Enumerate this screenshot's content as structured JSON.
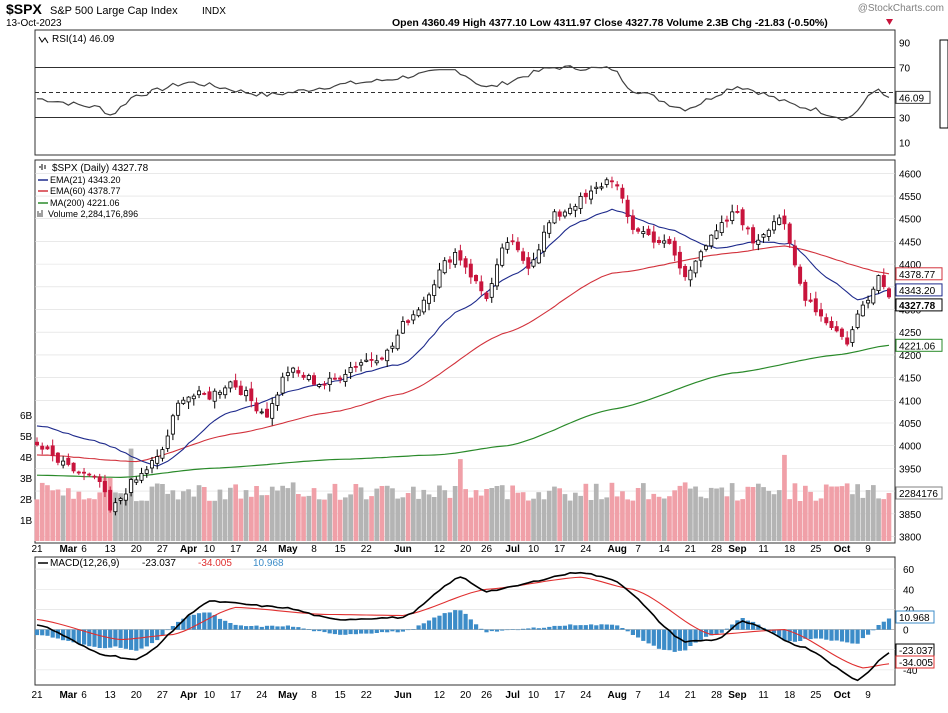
{
  "header": {
    "symbol": "$SPX",
    "name": "S&P 500 Large Cap Index",
    "exchange": "INDX",
    "date": "13-Oct-2023",
    "stats_line": "Open 4360.49  High 4377.10  Low 4311.97  Close 4327.78  Volume 2.3B  Chg -21.83 (-0.50%)",
    "watermark": "@StockCharts.com"
  },
  "colors": {
    "up_candle": "#000000",
    "down_candle": "#c8143c",
    "ema21": "#1e2a8c",
    "ema60": "#d2323c",
    "ma200": "#2a8a2a",
    "volume_up": "#b4b4b4",
    "volume_down": "#f0a0a8",
    "macd_line": "#000000",
    "signal_line": "#e03030",
    "histogram": "#3c8cc8",
    "rsi_line": "#404040",
    "panel_border": "#303030",
    "grid": "#dcdcdc"
  },
  "rsi_panel": {
    "legend": "RSI(14) 46.09",
    "current_label": "46.09",
    "levels": [
      90,
      70,
      50,
      30,
      10
    ],
    "ylim": [
      0,
      100
    ]
  },
  "price_panel": {
    "legend": [
      "$SPX (Daily) 4327.78",
      "EMA(21) 4343.20",
      "EMA(60) 4378.77",
      "MA(200) 4221.06",
      "Volume 2,284,176,896"
    ],
    "right_labels": [
      "4378.77",
      "4343.20",
      "4327.78",
      "4221.06",
      "2284176"
    ],
    "y_ticks": [
      4600,
      4550,
      4500,
      4450,
      4400,
      4350,
      4300,
      4250,
      4200,
      4150,
      4100,
      4050,
      4000,
      3950,
      3900,
      3850,
      3800
    ],
    "volume_ticks": [
      "6B",
      "5B",
      "4B",
      "3B",
      "2B",
      "1B"
    ],
    "ylim": [
      3790,
      4625
    ]
  },
  "macd_panel": {
    "legend": "MACD(12,26,9)",
    "macd_value": "-23.037",
    "signal_value": "-34.005",
    "hist_value": "10.968",
    "y_ticks": [
      "60",
      "40",
      "20",
      "0",
      "-20",
      "-40"
    ],
    "ylim": [
      -55,
      72
    ]
  },
  "x_axis": {
    "labels": [
      "21",
      "Mar",
      "6",
      "13",
      "20",
      "27",
      "Apr",
      "10",
      "17",
      "24",
      "May",
      "8",
      "15",
      "22",
      "Jun",
      "12",
      "20",
      "26",
      "Jul",
      "10",
      "17",
      "24",
      "Aug",
      "7",
      "14",
      "21",
      "28",
      "Sep",
      "11",
      "18",
      "25",
      "Oct",
      "9"
    ]
  },
  "chart_data": {
    "type": "candlestick",
    "date_range": [
      "2023-02-21",
      "2023-10-13"
    ],
    "series": [
      {
        "name": "$SPX (Daily)",
        "last": 4327.78
      },
      {
        "name": "EMA(21)",
        "last": 4343.2
      },
      {
        "name": "EMA(60)",
        "last": 4378.77
      },
      {
        "name": "MA(200)",
        "last": 4221.06
      },
      {
        "name": "Volume",
        "last": 2284176896
      }
    ],
    "close_anchors": [
      [
        "2023-02-21",
        3998
      ],
      [
        "2023-03-01",
        3950
      ],
      [
        "2023-03-09",
        3920
      ],
      [
        "2023-03-13",
        3855
      ],
      [
        "2023-03-17",
        3915
      ],
      [
        "2023-03-24",
        3970
      ],
      [
        "2023-03-31",
        4110
      ],
      [
        "2023-04-10",
        4110
      ],
      [
        "2023-04-14",
        4140
      ],
      [
        "2023-04-25",
        4070
      ],
      [
        "2023-05-01",
        4165
      ],
      [
        "2023-05-10",
        4135
      ],
      [
        "2023-05-19",
        4185
      ],
      [
        "2023-05-26",
        4205
      ],
      [
        "2023-06-02",
        4280
      ],
      [
        "2023-06-15",
        4425
      ],
      [
        "2023-06-26",
        4330
      ],
      [
        "2023-06-30",
        4450
      ],
      [
        "2023-07-07",
        4400
      ],
      [
        "2023-07-14",
        4505
      ],
      [
        "2023-07-21",
        4540
      ],
      [
        "2023-07-31",
        4590
      ],
      [
        "2023-08-04",
        4480
      ],
      [
        "2023-08-15",
        4440
      ],
      [
        "2023-08-18",
        4370
      ],
      [
        "2023-08-23",
        4435
      ],
      [
        "2023-09-01",
        4515
      ],
      [
        "2023-09-07",
        4450
      ],
      [
        "2023-09-14",
        4505
      ],
      [
        "2023-09-21",
        4330
      ],
      [
        "2023-09-27",
        4275
      ],
      [
        "2023-10-03",
        4230
      ],
      [
        "2023-10-06",
        4310
      ],
      [
        "2023-10-11",
        4375
      ],
      [
        "2023-10-13",
        4327.78
      ]
    ],
    "ema21_anchors": [
      [
        "2023-02-21",
        4045
      ],
      [
        "2023-03-08",
        4010
      ],
      [
        "2023-03-24",
        3955
      ],
      [
        "2023-04-14",
        4075
      ],
      [
        "2023-05-05",
        4130
      ],
      [
        "2023-06-01",
        4180
      ],
      [
        "2023-06-16",
        4300
      ],
      [
        "2023-07-03",
        4375
      ],
      [
        "2023-07-21",
        4495
      ],
      [
        "2023-07-31",
        4520
      ],
      [
        "2023-08-14",
        4480
      ],
      [
        "2023-08-28",
        4435
      ],
      [
        "2023-09-08",
        4450
      ],
      [
        "2023-09-18",
        4445
      ],
      [
        "2023-09-28",
        4365
      ],
      [
        "2023-10-05",
        4320
      ],
      [
        "2023-10-13",
        4343.2
      ]
    ],
    "ema60_anchors": [
      [
        "2023-02-21",
        3980
      ],
      [
        "2023-03-20",
        3965
      ],
      [
        "2023-04-14",
        4025
      ],
      [
        "2023-05-12",
        4075
      ],
      [
        "2023-06-01",
        4115
      ],
      [
        "2023-06-30",
        4250
      ],
      [
        "2023-07-31",
        4380
      ],
      [
        "2023-08-31",
        4425
      ],
      [
        "2023-09-15",
        4440
      ],
      [
        "2023-10-13",
        4378.77
      ]
    ],
    "ma200_anchors": [
      [
        "2023-02-21",
        3935
      ],
      [
        "2023-03-15",
        3930
      ],
      [
        "2023-04-10",
        3950
      ],
      [
        "2023-05-15",
        3970
      ],
      [
        "2023-06-12",
        3980
      ],
      [
        "2023-06-30",
        4000
      ],
      [
        "2023-07-31",
        4080
      ],
      [
        "2023-08-31",
        4160
      ],
      [
        "2023-09-29",
        4200
      ],
      [
        "2023-10-13",
        4221.06
      ]
    ],
    "rsi_anchors": [
      [
        "2023-02-21",
        45
      ],
      [
        "2023-03-09",
        38
      ],
      [
        "2023-03-13",
        32
      ],
      [
        "2023-03-20",
        48
      ],
      [
        "2023-04-03",
        58
      ],
      [
        "2023-04-25",
        48
      ],
      [
        "2023-05-19",
        58
      ],
      [
        "2023-06-15",
        68
      ],
      [
        "2023-06-26",
        54
      ],
      [
        "2023-07-14",
        70
      ],
      [
        "2023-07-31",
        69
      ],
      [
        "2023-08-04",
        52
      ],
      [
        "2023-08-18",
        37
      ],
      [
        "2023-09-01",
        55
      ],
      [
        "2023-09-21",
        38
      ],
      [
        "2023-10-03",
        29
      ],
      [
        "2023-10-11",
        53
      ],
      [
        "2023-10-13",
        46.09
      ]
    ],
    "macd_anchors": [
      [
        "2023-02-21",
        5
      ],
      [
        "2023-03-10",
        -25
      ],
      [
        "2023-03-20",
        -30
      ],
      [
        "2023-04-10",
        28
      ],
      [
        "2023-04-28",
        22
      ],
      [
        "2023-05-12",
        10
      ],
      [
        "2023-06-01",
        12
      ],
      [
        "2023-06-16",
        52
      ],
      [
        "2023-06-26",
        38
      ],
      [
        "2023-07-21",
        57
      ],
      [
        "2023-07-31",
        50
      ],
      [
        "2023-08-18",
        -12
      ],
      [
        "2023-08-28",
        -10
      ],
      [
        "2023-09-05",
        8
      ],
      [
        "2023-09-21",
        -18
      ],
      [
        "2023-10-05",
        -50
      ],
      [
        "2023-10-13",
        -23.037
      ]
    ],
    "signal_anchors": [
      [
        "2023-02-21",
        10
      ],
      [
        "2023-03-15",
        -10
      ],
      [
        "2023-03-29",
        -5
      ],
      [
        "2023-04-17",
        22
      ],
      [
        "2023-05-10",
        15
      ],
      [
        "2023-06-01",
        14
      ],
      [
        "2023-06-26",
        40
      ],
      [
        "2023-07-21",
        52
      ],
      [
        "2023-08-04",
        40
      ],
      [
        "2023-08-25",
        -5
      ],
      [
        "2023-09-15",
        0
      ],
      [
        "2023-10-06",
        -38
      ],
      [
        "2023-10-13",
        -34.005
      ]
    ]
  }
}
